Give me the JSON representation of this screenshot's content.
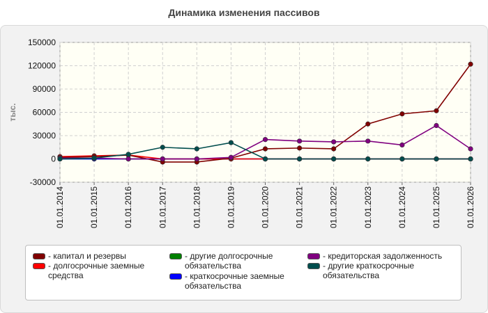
{
  "title": "Динамика изменения пассивов",
  "chart_data": {
    "type": "line",
    "ylabel": "тыс.",
    "ylim": [
      -30000,
      150000
    ],
    "yticks": [
      -30000,
      0,
      30000,
      60000,
      90000,
      120000,
      150000
    ],
    "x": [
      "01.01.2014",
      "01.01.2015",
      "01.01.2016",
      "01.01.2017",
      "01.01.2018",
      "01.01.2019",
      "01.01.2020",
      "01.01.2021",
      "01.01.2022",
      "01.01.2023",
      "01.01.2024",
      "01.01.2025",
      "01.01.2026"
    ],
    "grid": true,
    "legend_position": "bottom",
    "series": [
      {
        "name": "капитал и резервы",
        "color": "#800000",
        "values": [
          2000,
          3000,
          5000,
          -4000,
          -4000,
          1000,
          13000,
          14000,
          13000,
          45000,
          58000,
          62000,
          122000
        ]
      },
      {
        "name": "долгосрочные заемные средства",
        "color": "#ff0000",
        "values": [
          3000,
          4000,
          5000,
          0,
          0,
          0,
          0,
          0,
          0,
          0,
          0,
          0,
          0
        ]
      },
      {
        "name": "другие долгосрочные обязательства",
        "color": "#008000",
        "values": [
          0,
          0,
          0,
          0,
          0,
          0,
          0,
          0,
          0,
          0,
          0,
          0,
          0
        ]
      },
      {
        "name": "краткосрочные заемные обязательства",
        "color": "#0000ff",
        "values": [
          0,
          0,
          0,
          0,
          0,
          0,
          0,
          0,
          0,
          0,
          0,
          0,
          0
        ]
      },
      {
        "name": "кредиторская задолженность",
        "color": "#800080",
        "values": [
          1000,
          1000,
          0,
          0,
          0,
          2000,
          25000,
          23000,
          22000,
          23000,
          18000,
          43000,
          13000
        ]
      },
      {
        "name": "другие краткосрочные обязательства",
        "color": "#004d4d",
        "values": [
          0,
          1000,
          6000,
          15000,
          13000,
          21000,
          0,
          0,
          0,
          0,
          0,
          0,
          0
        ]
      }
    ]
  },
  "legend": {
    "items": [
      {
        "label": "- капитал и резервы",
        "color": "#800000"
      },
      {
        "label": "- долгосрочные заемные средства",
        "color": "#ff0000"
      },
      {
        "label": "- другие долгосрочные обязательства",
        "color": "#008000"
      },
      {
        "label": "- краткосрочные заемные обязательства",
        "color": "#0000ff"
      },
      {
        "label": "- кредиторская задолженность",
        "color": "#800080"
      },
      {
        "label": "- другие краткосрочные обязательства",
        "color": "#004d4d"
      }
    ]
  }
}
